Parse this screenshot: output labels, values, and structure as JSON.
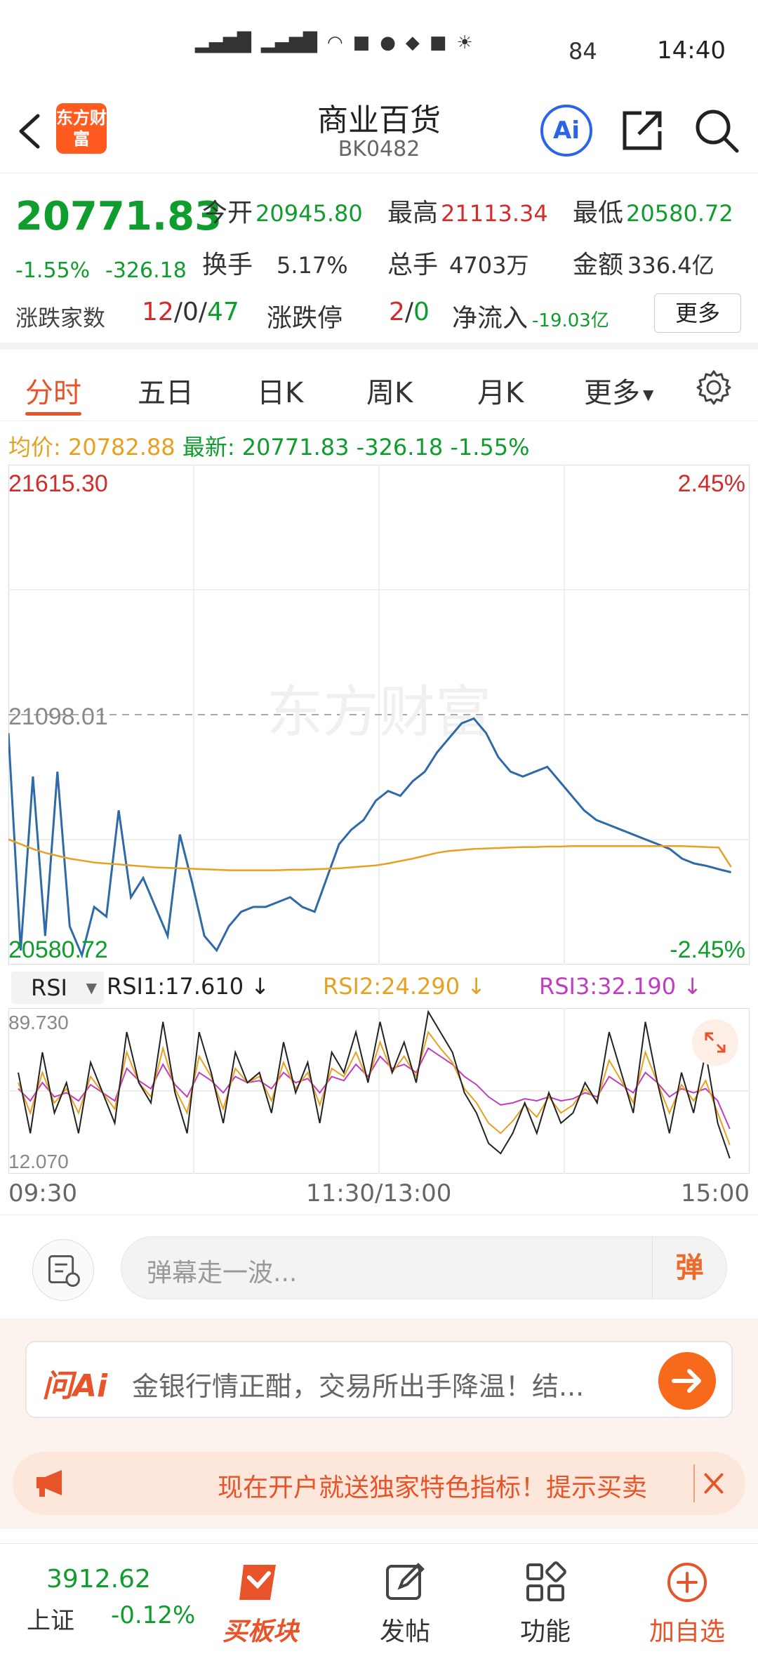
{
  "status": {
    "time": "14:40",
    "battery": "84"
  },
  "nav": {
    "title": "商业百货",
    "code": "BK0482",
    "logo_text": "东方财富",
    "ai_label": "Ai"
  },
  "quote": {
    "price": "20771.83",
    "change_pct": "-1.55%",
    "change_val": "-326.18",
    "open_label": "今开",
    "open": "20945.80",
    "high_label": "最高",
    "high": "21113.34",
    "low_label": "最低",
    "low": "20580.72",
    "turnover_label": "换手",
    "turnover": "5.17%",
    "volume_label": "总手",
    "volume": "4703万",
    "amount_label": "金额",
    "amount": "336.4亿",
    "breadth_label": "涨跌家数",
    "breadth_up": "12",
    "breadth_flat": "0",
    "breadth_down": "47",
    "limit_label": "涨跌停",
    "limit_up": "2",
    "limit_down": "0",
    "netflow_label": "净流入",
    "netflow": "-19.03亿",
    "more_label": "更多"
  },
  "tabs": [
    {
      "label": "分时"
    },
    {
      "label": "五日"
    },
    {
      "label": "日K"
    },
    {
      "label": "周K"
    },
    {
      "label": "月K"
    },
    {
      "label": "更多"
    }
  ],
  "avg_bar": {
    "avg_label": "均价:",
    "avg": "20782.88",
    "latest_label": "最新:",
    "latest": "20771.83",
    "chg": "-326.18",
    "pct": "-1.55%"
  },
  "chart_data": {
    "type": "line",
    "y_top": "21615.30",
    "y_mid": "21098.01",
    "y_bottom": "20580.72",
    "pct_top": "2.45%",
    "pct_bottom": "-2.45%",
    "ylim": [
      20580.72,
      21615.3
    ],
    "watermark": "东方财富",
    "x_labels": [
      "09:30",
      "11:30/13:00",
      "15:00"
    ],
    "series": [
      {
        "name": "最新",
        "color": "#2f6aa8",
        "values": [
          21060,
          20610,
          20970,
          20640,
          20980,
          20660,
          20600,
          20700,
          20680,
          20900,
          20720,
          20760,
          20700,
          20640,
          20850,
          20750,
          20640,
          20610,
          20660,
          20690,
          20700,
          20700,
          20710,
          20720,
          20700,
          20690,
          20760,
          20830,
          20860,
          20880,
          20920,
          20940,
          20930,
          20960,
          20980,
          21020,
          21050,
          21080,
          21090,
          21060,
          21010,
          20980,
          20970,
          20980,
          20990,
          20960,
          20930,
          20900,
          20880,
          20870,
          20860,
          20850,
          20840,
          20830,
          20820,
          20800,
          20790,
          20785,
          20778,
          20771.83
        ]
      },
      {
        "name": "均价",
        "color": "#e8a020",
        "values": [
          20840,
          20830,
          20820,
          20812,
          20806,
          20800,
          20796,
          20792,
          20790,
          20788,
          20786,
          20784,
          20782,
          20781,
          20780,
          20779,
          20778,
          20777,
          20776,
          20776,
          20776,
          20776,
          20776,
          20777,
          20777,
          20778,
          20779,
          20780,
          20782,
          20784,
          20786,
          20790,
          20795,
          20800,
          20806,
          20812,
          20816,
          20818,
          20820,
          20821,
          20822,
          20823,
          20824,
          20824,
          20825,
          20825,
          20826,
          20826,
          20826,
          20826,
          20826,
          20826,
          20826,
          20826,
          20826,
          20826,
          20825,
          20824,
          20823,
          20782.88
        ]
      }
    ]
  },
  "rsi": {
    "select": "RSI",
    "rsi1": "RSI1:17.610",
    "rsi2": "RSI2:24.290",
    "rsi3": "RSI3:32.190",
    "max": "89.730",
    "min": "12.070",
    "colors": {
      "rsi1": "#222222",
      "rsi2": "#e8a020",
      "rsi3": "#c23cc2"
    },
    "ylim": [
      12.07,
      89.73
    ],
    "rsi1_values": [
      60,
      30,
      70,
      40,
      55,
      30,
      65,
      50,
      35,
      80,
      55,
      45,
      85,
      50,
      30,
      80,
      60,
      35,
      70,
      55,
      60,
      40,
      75,
      50,
      65,
      35,
      70,
      60,
      80,
      55,
      85,
      60,
      75,
      55,
      90,
      80,
      70,
      50,
      40,
      25,
      20,
      30,
      45,
      30,
      50,
      35,
      40,
      55,
      45,
      80,
      60,
      40,
      85,
      55,
      30,
      60,
      40,
      70,
      35,
      17.61
    ],
    "rsi2_values": [
      55,
      40,
      60,
      45,
      52,
      40,
      58,
      50,
      42,
      70,
      55,
      48,
      72,
      52,
      40,
      68,
      58,
      42,
      62,
      55,
      58,
      46,
      65,
      52,
      60,
      44,
      62,
      58,
      70,
      56,
      75,
      60,
      68,
      58,
      80,
      72,
      65,
      52,
      45,
      35,
      30,
      36,
      44,
      38,
      48,
      40,
      44,
      52,
      46,
      66,
      56,
      45,
      70,
      55,
      40,
      54,
      46,
      56,
      40,
      24.29
    ],
    "rsi3_values": [
      52,
      46,
      55,
      48,
      50,
      46,
      54,
      50,
      46,
      62,
      56,
      52,
      64,
      54,
      48,
      60,
      56,
      50,
      58,
      55,
      56,
      52,
      60,
      55,
      57,
      50,
      58,
      56,
      64,
      58,
      68,
      62,
      64,
      60,
      72,
      68,
      64,
      58,
      54,
      48,
      44,
      45,
      47,
      46,
      48,
      46,
      47,
      50,
      48,
      58,
      54,
      50,
      60,
      55,
      48,
      52,
      50,
      52,
      46,
      32.19
    ]
  },
  "comment": {
    "placeholder": "弹幕走一波...",
    "danmu_label": "弹"
  },
  "ai": {
    "brand": "问Ai",
    "text": "金银行情正酣，交易所出手降温！结..."
  },
  "promo": {
    "text": "现在开户就送独家特色指标！提示买卖"
  },
  "bottom": {
    "index_value": "3912.62",
    "index_name": "上证",
    "index_change": "-0.12%",
    "items": [
      {
        "label": "买板块"
      },
      {
        "label": "发帖"
      },
      {
        "label": "功能"
      },
      {
        "label": "加自选"
      }
    ]
  }
}
